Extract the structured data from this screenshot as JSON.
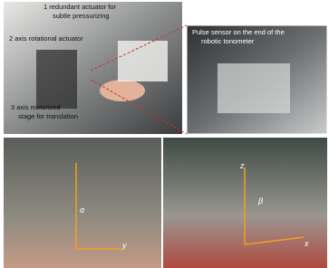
{
  "figure": {
    "top_left": {
      "labels": [
        {
          "lines": [
            "1 redundant actuator for",
            "subtle pressurizing"
          ]
        },
        {
          "lines": [
            "2 axis rotational actuator"
          ]
        },
        {
          "lines": [
            "3 axis motorized",
            "stage for translation"
          ]
        }
      ]
    },
    "top_right": {
      "labels": [
        {
          "lines": [
            "Pulse sensor on the end of the",
            "robotic tonometer"
          ]
        }
      ]
    },
    "bottom_left": {
      "axes": [
        "α",
        "y"
      ]
    },
    "bottom_right": {
      "axes": [
        "z",
        "β",
        "x"
      ]
    }
  }
}
